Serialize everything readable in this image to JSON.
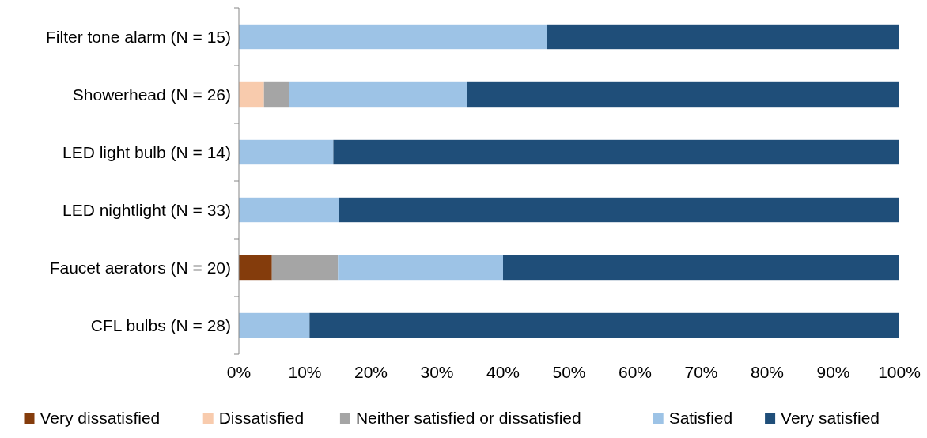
{
  "chart_data": {
    "type": "bar",
    "orientation": "horizontal",
    "stacked": true,
    "categories": [
      "Filter tone alarm (N = 15)",
      "Showerhead (N = 26)",
      "LED light bulb (N = 14)",
      "LED nightlight (N = 33)",
      "Faucet aerators (N = 20)",
      "CFL bulbs (N = 28)"
    ],
    "series": [
      {
        "name": "Very dissatisfied",
        "color": "#843c0c",
        "values": [
          0,
          0,
          0,
          0,
          5,
          0
        ]
      },
      {
        "name": "Dissatisfied",
        "color": "#f8cbad",
        "values": [
          0,
          3.8,
          0,
          0,
          0,
          0
        ]
      },
      {
        "name": "Neither satisfied or dissatisfied",
        "color": "#a5a5a5",
        "values": [
          0,
          3.8,
          0,
          0,
          10,
          0
        ]
      },
      {
        "name": "Satisfied",
        "color": "#9dc3e6",
        "values": [
          46.7,
          26.9,
          14.3,
          15.2,
          25,
          10.7
        ]
      },
      {
        "name": "Very satisfied",
        "color": "#1f4e79",
        "values": [
          53.3,
          65.4,
          85.7,
          84.8,
          60,
          89.3
        ]
      }
    ],
    "xlim": [
      0,
      100
    ],
    "xticks": [
      {
        "value": 0,
        "label": "0%"
      },
      {
        "value": 10,
        "label": "10%"
      },
      {
        "value": 20,
        "label": "20%"
      },
      {
        "value": 30,
        "label": "30%"
      },
      {
        "value": 40,
        "label": "40%"
      },
      {
        "value": 50,
        "label": "50%"
      },
      {
        "value": 60,
        "label": "60%"
      },
      {
        "value": 70,
        "label": "70%"
      },
      {
        "value": 80,
        "label": "80%"
      },
      {
        "value": 90,
        "label": "90%"
      },
      {
        "value": 100,
        "label": "100%"
      }
    ],
    "grid": false,
    "legend": "bottom"
  }
}
